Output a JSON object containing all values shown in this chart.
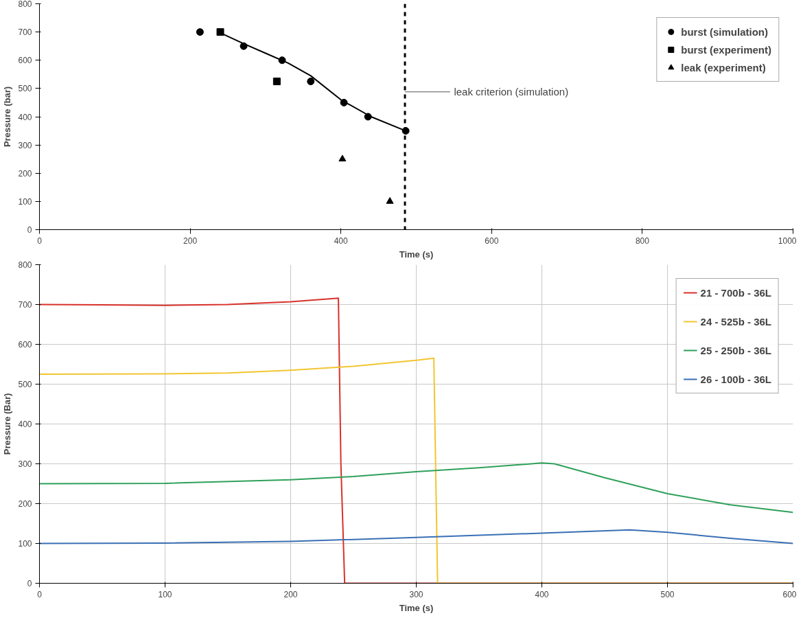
{
  "chart_data": [
    {
      "type": "scatter",
      "xlabel": "Time (s)",
      "ylabel": "Pressure (bar)",
      "xlim": [
        0,
        1000
      ],
      "ylim": [
        0,
        800
      ],
      "xticks": [
        0,
        200,
        400,
        600,
        800,
        1000
      ],
      "yticks": [
        0,
        100,
        200,
        300,
        400,
        500,
        600,
        700,
        800
      ],
      "grid": false,
      "legend": "top right",
      "ref_lines": [
        {
          "axis": "x",
          "value": 485,
          "label": "leak criterion (simulation)",
          "color": "#000000",
          "line_style": "dashed"
        }
      ],
      "series": [
        {
          "name": "burst (simulation)",
          "type": "scatter",
          "marker": "circle",
          "color": "#000000",
          "x": [
            213,
            271,
            322,
            360,
            404,
            436,
            486
          ],
          "values": [
            700,
            650,
            600,
            525,
            450,
            400,
            350
          ]
        },
        {
          "name": "burst (experiment)",
          "type": "scatter",
          "marker": "square",
          "color": "#000000",
          "x": [
            240,
            315
          ],
          "values": [
            700,
            525
          ]
        },
        {
          "name": "leak (experiment)",
          "type": "scatter",
          "marker": "triangle",
          "color": "#000000",
          "x": [
            402,
            465
          ],
          "values": [
            250,
            100
          ]
        },
        {
          "type": "line",
          "marker": "none",
          "color": "#000000",
          "x": [
            240,
            270,
            300,
            330,
            360,
            400,
            440,
            486
          ],
          "values": [
            697,
            660,
            625,
            590,
            545,
            460,
            400,
            350
          ]
        }
      ]
    },
    {
      "type": "line",
      "xlabel": "Time (s)",
      "ylabel": "Pressure (Bar)",
      "xlim": [
        0,
        600
      ],
      "ylim": [
        0,
        800
      ],
      "xticks": [
        0,
        100,
        200,
        300,
        400,
        500,
        600
      ],
      "yticks": [
        0,
        100,
        200,
        300,
        400,
        500,
        600,
        700,
        800
      ],
      "grid": true,
      "legend": "top right",
      "series": [
        {
          "name": "21 - 700b - 36L",
          "color": "#d9312b",
          "x": [
            0,
            50,
            100,
            150,
            200,
            238,
            240,
            243,
            600
          ],
          "values": [
            700,
            699,
            698,
            700,
            707,
            716,
            300,
            0,
            0
          ]
        },
        {
          "name": "24 - 525b - 36L",
          "color": "#f2c530",
          "x": [
            0,
            100,
            150,
            200,
            250,
            300,
            314,
            317,
            600
          ],
          "values": [
            525,
            526,
            528,
            535,
            545,
            560,
            565,
            0,
            0
          ]
        },
        {
          "name": "25 - 250b - 36L",
          "color": "#2ea05a",
          "x": [
            0,
            100,
            200,
            250,
            300,
            350,
            400,
            410,
            450,
            500,
            550,
            600
          ],
          "values": [
            250,
            251,
            260,
            268,
            280,
            290,
            302,
            300,
            265,
            225,
            197,
            178
          ]
        },
        {
          "name": "26 - 100b - 36L",
          "color": "#3a6fb5",
          "x": [
            0,
            100,
            200,
            300,
            400,
            470,
            500,
            550,
            600
          ],
          "values": [
            100,
            101,
            105,
            115,
            126,
            134,
            128,
            113,
            100
          ]
        }
      ]
    }
  ]
}
